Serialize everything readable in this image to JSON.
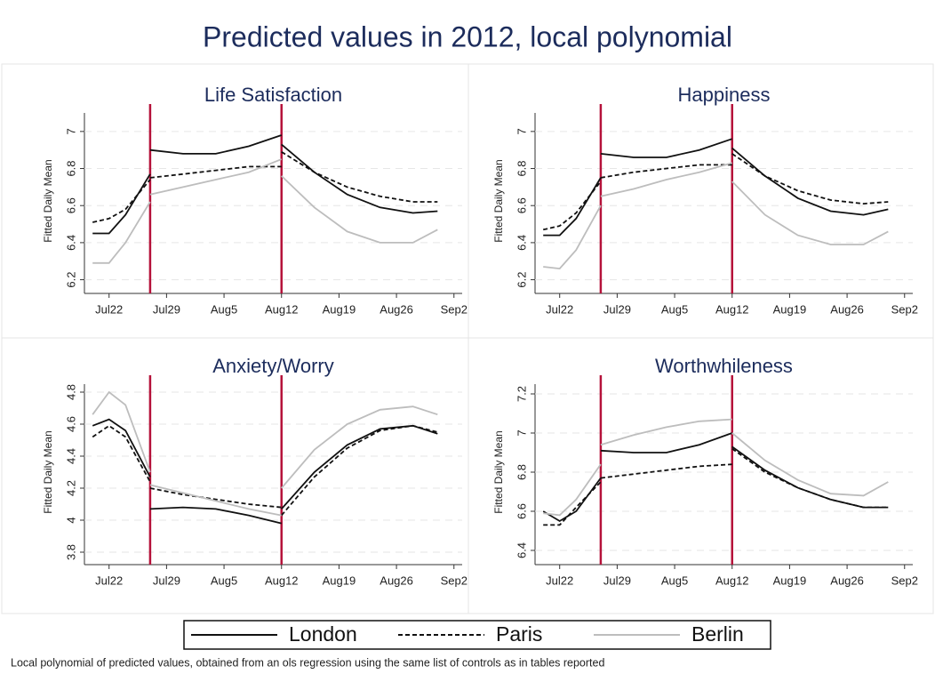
{
  "title": "Predicted values in 2012, local polynomial",
  "note": "Local polynomial of predicted values, obtained from an ols regression using the same list of controls as in tables reported",
  "chart_data": [
    {
      "type": "line",
      "title": "Life Satisfaction",
      "ylabel": "Fitted Daily Mean",
      "x": [
        "Jul20",
        "Jul22",
        "Jul24",
        "Jul27",
        "Jul27",
        "Jul27",
        "Jul31",
        "Aug4",
        "Aug8",
        "Aug12",
        "Aug12",
        "Aug12",
        "Aug16",
        "Aug20",
        "Aug24",
        "Aug28",
        "Aug31"
      ],
      "xlim": [
        "Jul19",
        "Sep3"
      ],
      "xticks": [
        "Jul22",
        "Jul29",
        "Aug5",
        "Aug12",
        "Aug19",
        "Aug26",
        "Sep2"
      ],
      "ylim": [
        6.15,
        7.1
      ],
      "yticks": [
        6.2,
        6.4,
        6.6,
        6.8,
        7
      ],
      "grid": true,
      "vlines": [
        "Jul27",
        "Aug12"
      ],
      "vline_color": "#b5123a",
      "series": [
        {
          "name": "London",
          "color": "#111111",
          "dash": "solid",
          "values": [
            6.45,
            6.45,
            6.55,
            6.77,
            null,
            6.9,
            6.88,
            6.88,
            6.92,
            6.98,
            null,
            6.93,
            6.78,
            6.66,
            6.59,
            6.56,
            6.57
          ]
        },
        {
          "name": "Paris",
          "color": "#111111",
          "dash": "dashed",
          "values": [
            6.51,
            6.53,
            6.58,
            6.74,
            null,
            6.75,
            6.77,
            6.79,
            6.81,
            6.81,
            null,
            6.89,
            6.78,
            6.7,
            6.65,
            6.62,
            6.62
          ]
        },
        {
          "name": "Berlin",
          "color": "#bdbdbd",
          "dash": "solid",
          "values": [
            6.29,
            6.29,
            6.4,
            6.62,
            null,
            6.66,
            6.7,
            6.74,
            6.78,
            6.85,
            null,
            6.76,
            6.59,
            6.46,
            6.4,
            6.4,
            6.47
          ]
        }
      ]
    },
    {
      "type": "line",
      "title": "Happiness",
      "ylabel": "Fitted Daily Mean",
      "x": [
        "Jul20",
        "Jul22",
        "Jul24",
        "Jul27",
        "Jul27",
        "Jul27",
        "Jul31",
        "Aug4",
        "Aug8",
        "Aug12",
        "Aug12",
        "Aug12",
        "Aug16",
        "Aug20",
        "Aug24",
        "Aug28",
        "Aug31"
      ],
      "xlim": [
        "Jul19",
        "Sep3"
      ],
      "xticks": [
        "Jul22",
        "Jul29",
        "Aug5",
        "Aug12",
        "Aug19",
        "Aug26",
        "Sep2"
      ],
      "ylim": [
        6.15,
        7.1
      ],
      "yticks": [
        6.2,
        6.4,
        6.6,
        6.8,
        7
      ],
      "grid": true,
      "vlines": [
        "Jul27",
        "Aug12"
      ],
      "vline_color": "#b5123a",
      "series": [
        {
          "name": "London",
          "color": "#111111",
          "dash": "solid",
          "values": [
            6.44,
            6.44,
            6.53,
            6.75,
            null,
            6.88,
            6.86,
            6.86,
            6.9,
            6.96,
            null,
            6.91,
            6.76,
            6.64,
            6.57,
            6.55,
            6.58
          ]
        },
        {
          "name": "Paris",
          "color": "#111111",
          "dash": "dashed",
          "values": [
            6.47,
            6.49,
            6.56,
            6.73,
            null,
            6.75,
            6.78,
            6.8,
            6.82,
            6.82,
            null,
            6.88,
            6.76,
            6.68,
            6.63,
            6.61,
            6.62
          ]
        },
        {
          "name": "Berlin",
          "color": "#bdbdbd",
          "dash": "solid",
          "values": [
            6.27,
            6.26,
            6.36,
            6.6,
            null,
            6.65,
            6.69,
            6.74,
            6.78,
            6.83,
            null,
            6.73,
            6.55,
            6.44,
            6.39,
            6.39,
            6.46
          ]
        }
      ]
    },
    {
      "type": "line",
      "title": "Anxiety/Worry",
      "ylabel": "Fitted Daily Mean",
      "x": [
        "Jul20",
        "Jul22",
        "Jul24",
        "Jul27",
        "Jul27",
        "Jul27",
        "Jul31",
        "Aug4",
        "Aug8",
        "Aug12",
        "Aug12",
        "Aug12",
        "Aug16",
        "Aug20",
        "Aug24",
        "Aug28",
        "Aug31"
      ],
      "xlim": [
        "Jul19",
        "Sep3"
      ],
      "xticks": [
        "Jul22",
        "Jul29",
        "Aug5",
        "Aug12",
        "Aug19",
        "Aug26",
        "Sep2"
      ],
      "ylim": [
        3.75,
        4.85
      ],
      "yticks": [
        3.8,
        4,
        4.2,
        4.4,
        4.6,
        4.8
      ],
      "grid": true,
      "vlines": [
        "Jul27",
        "Aug12"
      ],
      "vline_color": "#b5123a",
      "series": [
        {
          "name": "London",
          "color": "#111111",
          "dash": "solid",
          "values": [
            4.59,
            4.63,
            4.56,
            4.27,
            null,
            4.07,
            4.08,
            4.07,
            4.03,
            3.98,
            null,
            4.07,
            4.3,
            4.47,
            4.57,
            4.59,
            4.54
          ]
        },
        {
          "name": "Paris",
          "color": "#111111",
          "dash": "dashed",
          "values": [
            4.52,
            4.59,
            4.52,
            4.24,
            null,
            4.2,
            4.16,
            4.13,
            4.1,
            4.08,
            null,
            4.03,
            4.27,
            4.45,
            4.56,
            4.59,
            4.55
          ]
        },
        {
          "name": "Berlin",
          "color": "#bdbdbd",
          "dash": "solid",
          "values": [
            4.66,
            4.8,
            4.72,
            4.3,
            null,
            4.22,
            4.17,
            4.12,
            4.07,
            4.03,
            null,
            4.2,
            4.44,
            4.6,
            4.69,
            4.71,
            4.66
          ]
        }
      ]
    },
    {
      "type": "line",
      "title": "Worthwhileness",
      "ylabel": "Fitted Daily Mean",
      "x": [
        "Jul20",
        "Jul22",
        "Jul24",
        "Jul27",
        "Jul27",
        "Jul27",
        "Jul31",
        "Aug4",
        "Aug8",
        "Aug12",
        "Aug12",
        "Aug12",
        "Aug16",
        "Aug20",
        "Aug24",
        "Aug28",
        "Aug31"
      ],
      "xlim": [
        "Jul19",
        "Sep3"
      ],
      "xticks": [
        "Jul22",
        "Jul29",
        "Aug5",
        "Aug12",
        "Aug19",
        "Aug26",
        "Sep2"
      ],
      "ylim": [
        6.35,
        7.25
      ],
      "yticks": [
        6.4,
        6.6,
        6.8,
        7,
        7.2
      ],
      "grid": true,
      "vlines": [
        "Jul27",
        "Aug12"
      ],
      "vline_color": "#b5123a",
      "series": [
        {
          "name": "London",
          "color": "#111111",
          "dash": "solid",
          "values": [
            6.6,
            6.55,
            6.6,
            6.77,
            null,
            6.91,
            6.9,
            6.9,
            6.94,
            7.0,
            null,
            6.93,
            6.81,
            6.72,
            6.66,
            6.62,
            6.62
          ]
        },
        {
          "name": "Paris",
          "color": "#111111",
          "dash": "dashed",
          "values": [
            6.53,
            6.53,
            6.62,
            6.75,
            null,
            6.77,
            6.79,
            6.81,
            6.83,
            6.84,
            null,
            6.92,
            6.8,
            6.72,
            6.66,
            6.62,
            6.62
          ]
        },
        {
          "name": "Berlin",
          "color": "#bdbdbd",
          "dash": "solid",
          "values": [
            6.59,
            6.58,
            6.66,
            6.84,
            null,
            6.94,
            6.99,
            7.03,
            7.06,
            7.07,
            null,
            7.0,
            6.86,
            6.76,
            6.69,
            6.68,
            6.75
          ]
        }
      ]
    }
  ]
}
